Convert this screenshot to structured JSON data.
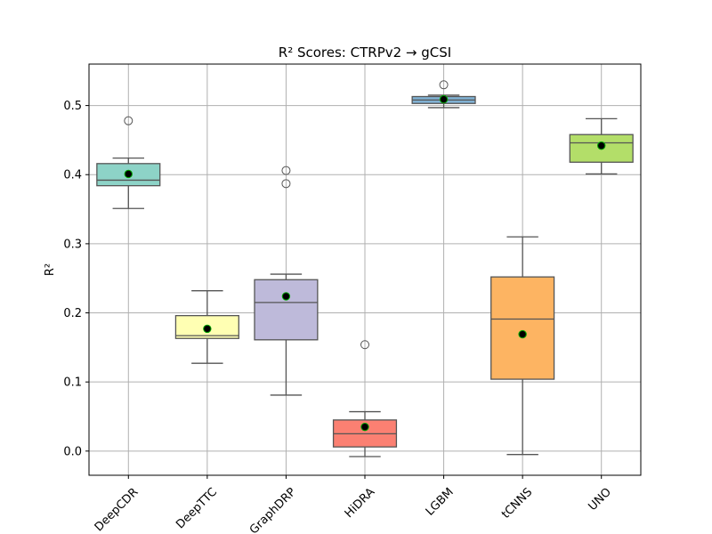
{
  "chart_data": {
    "type": "box",
    "title": "R² Scores: CTRPv2 → gCSI",
    "xlabel": "",
    "ylabel": "R²",
    "ylim": [
      -0.035,
      0.56
    ],
    "yticks": [
      "0.0",
      "0.1",
      "0.2",
      "0.3",
      "0.4",
      "0.5"
    ],
    "grid": true,
    "categories": [
      "DeepCDR",
      "DeepTTC",
      "GraphDRP",
      "HiDRA",
      "LGBM",
      "tCNNS",
      "UNO"
    ],
    "series": [
      {
        "whisker_low": 0.351,
        "q1": 0.384,
        "median": 0.392,
        "q3": 0.416,
        "whisker_high": 0.424,
        "mean": 0.401,
        "outliers": [
          0.478
        ],
        "color": "#8dd3c7"
      },
      {
        "whisker_low": 0.127,
        "q1": 0.163,
        "median": 0.167,
        "q3": 0.196,
        "whisker_high": 0.232,
        "mean": 0.177,
        "outliers": [],
        "color": "#ffffb3"
      },
      {
        "whisker_low": 0.081,
        "q1": 0.161,
        "median": 0.215,
        "q3": 0.248,
        "whisker_high": 0.256,
        "mean": 0.224,
        "outliers": [
          0.406,
          0.387
        ],
        "color": "#bebada"
      },
      {
        "whisker_low": -0.008,
        "q1": 0.006,
        "median": 0.025,
        "q3": 0.045,
        "whisker_high": 0.057,
        "mean": 0.035,
        "outliers": [
          0.154
        ],
        "color": "#fb8072"
      },
      {
        "whisker_low": 0.497,
        "q1": 0.503,
        "median": 0.508,
        "q3": 0.513,
        "whisker_high": 0.515,
        "mean": 0.509,
        "outliers": [
          0.53
        ],
        "color": "#80b1d3"
      },
      {
        "whisker_low": -0.005,
        "q1": 0.104,
        "median": 0.191,
        "q3": 0.252,
        "whisker_high": 0.31,
        "mean": 0.169,
        "outliers": [],
        "color": "#fdb462"
      },
      {
        "whisker_low": 0.401,
        "q1": 0.418,
        "median": 0.446,
        "q3": 0.458,
        "whisker_high": 0.481,
        "mean": 0.442,
        "outliers": [],
        "color": "#b3de69"
      }
    ],
    "mean_marker_color": "#000000",
    "mean_marker_edge": "#00aa00"
  }
}
